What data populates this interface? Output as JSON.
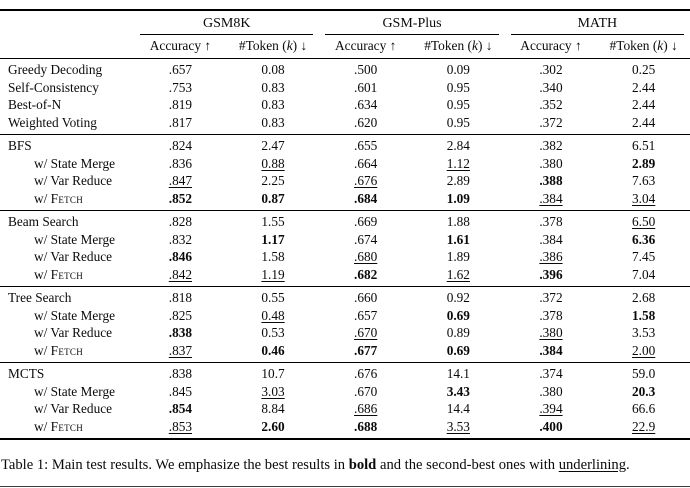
{
  "table": {
    "groups": [
      {
        "label": "GSM8K"
      },
      {
        "label": "GSM-Plus"
      },
      {
        "label": "MATH"
      }
    ],
    "subheader": {
      "accuracy": "Accuracy ↑",
      "token_pre": "#Token (",
      "token_italic": "k",
      "token_post": ") ↓"
    },
    "blocks": [
      {
        "rows": [
          {
            "text": "Greedy Decoding",
            "sc": "",
            "indent": false,
            "cells": [
              [
                ".657",
                ""
              ],
              [
                "0.08",
                ""
              ],
              [
                ".500",
                ""
              ],
              [
                "0.09",
                ""
              ],
              [
                ".302",
                ""
              ],
              [
                "0.25",
                ""
              ]
            ]
          },
          {
            "text": "Self-Consistency",
            "sc": "",
            "indent": false,
            "cells": [
              [
                ".753",
                ""
              ],
              [
                "0.83",
                ""
              ],
              [
                ".601",
                ""
              ],
              [
                "0.95",
                ""
              ],
              [
                ".340",
                ""
              ],
              [
                "2.44",
                ""
              ]
            ]
          },
          {
            "text": "Best-of-N",
            "sc": "",
            "indent": false,
            "cells": [
              [
                ".819",
                ""
              ],
              [
                "0.83",
                ""
              ],
              [
                ".634",
                ""
              ],
              [
                "0.95",
                ""
              ],
              [
                ".352",
                ""
              ],
              [
                "2.44",
                ""
              ]
            ]
          },
          {
            "text": "Weighted Voting",
            "sc": "",
            "indent": false,
            "cells": [
              [
                ".817",
                ""
              ],
              [
                "0.83",
                ""
              ],
              [
                ".620",
                ""
              ],
              [
                "0.95",
                ""
              ],
              [
                ".372",
                ""
              ],
              [
                "2.44",
                ""
              ]
            ]
          }
        ]
      },
      {
        "rows": [
          {
            "text": "BFS",
            "sc": "",
            "indent": false,
            "cells": [
              [
                ".824",
                ""
              ],
              [
                "2.47",
                ""
              ],
              [
                ".655",
                ""
              ],
              [
                "2.84",
                ""
              ],
              [
                ".382",
                ""
              ],
              [
                "6.51",
                ""
              ]
            ]
          },
          {
            "text": "w/ State Merge",
            "sc": "",
            "indent": true,
            "cells": [
              [
                ".836",
                ""
              ],
              [
                "0.88",
                "u"
              ],
              [
                ".664",
                ""
              ],
              [
                "1.12",
                "u"
              ],
              [
                ".380",
                ""
              ],
              [
                "2.89",
                "b"
              ]
            ]
          },
          {
            "text": "w/ Var Reduce",
            "sc": "",
            "indent": true,
            "cells": [
              [
                ".847",
                "u"
              ],
              [
                "2.25",
                ""
              ],
              [
                ".676",
                "u"
              ],
              [
                "2.89",
                ""
              ],
              [
                ".388",
                "b"
              ],
              [
                "7.63",
                ""
              ]
            ]
          },
          {
            "text": "w/ ",
            "sc": "Fetch",
            "indent": true,
            "cells": [
              [
                ".852",
                "b"
              ],
              [
                "0.87",
                "b"
              ],
              [
                ".684",
                "b"
              ],
              [
                "1.09",
                "b"
              ],
              [
                ".384",
                "u"
              ],
              [
                "3.04",
                "u"
              ]
            ]
          }
        ]
      },
      {
        "rows": [
          {
            "text": "Beam Search",
            "sc": "",
            "indent": false,
            "cells": [
              [
                ".828",
                ""
              ],
              [
                "1.55",
                ""
              ],
              [
                ".669",
                ""
              ],
              [
                "1.88",
                ""
              ],
              [
                ".378",
                ""
              ],
              [
                "6.50",
                "u"
              ]
            ]
          },
          {
            "text": "w/ State Merge",
            "sc": "",
            "indent": true,
            "cells": [
              [
                ".832",
                ""
              ],
              [
                "1.17",
                "b"
              ],
              [
                ".674",
                ""
              ],
              [
                "1.61",
                "b"
              ],
              [
                ".384",
                ""
              ],
              [
                "6.36",
                "b"
              ]
            ]
          },
          {
            "text": "w/ Var Reduce",
            "sc": "",
            "indent": true,
            "cells": [
              [
                ".846",
                "b"
              ],
              [
                "1.58",
                ""
              ],
              [
                ".680",
                "u"
              ],
              [
                "1.89",
                ""
              ],
              [
                ".386",
                "u"
              ],
              [
                "7.45",
                ""
              ]
            ]
          },
          {
            "text": "w/ ",
            "sc": "Fetch",
            "indent": true,
            "cells": [
              [
                ".842",
                "u"
              ],
              [
                "1.19",
                "u"
              ],
              [
                ".682",
                "b"
              ],
              [
                "1.62",
                "u"
              ],
              [
                ".396",
                "b"
              ],
              [
                "7.04",
                ""
              ]
            ]
          }
        ]
      },
      {
        "rows": [
          {
            "text": "Tree Search",
            "sc": "",
            "indent": false,
            "cells": [
              [
                ".818",
                ""
              ],
              [
                "0.55",
                ""
              ],
              [
                ".660",
                ""
              ],
              [
                "0.92",
                ""
              ],
              [
                ".372",
                ""
              ],
              [
                "2.68",
                ""
              ]
            ]
          },
          {
            "text": "w/ State Merge",
            "sc": "",
            "indent": true,
            "cells": [
              [
                ".825",
                ""
              ],
              [
                "0.48",
                "u"
              ],
              [
                ".657",
                ""
              ],
              [
                "0.69",
                "b"
              ],
              [
                ".378",
                ""
              ],
              [
                "1.58",
                "b"
              ]
            ]
          },
          {
            "text": "w/ Var Reduce",
            "sc": "",
            "indent": true,
            "cells": [
              [
                ".838",
                "b"
              ],
              [
                "0.53",
                ""
              ],
              [
                ".670",
                "u"
              ],
              [
                "0.89",
                ""
              ],
              [
                ".380",
                "u"
              ],
              [
                "3.53",
                ""
              ]
            ]
          },
          {
            "text": "w/ ",
            "sc": "Fetch",
            "indent": true,
            "cells": [
              [
                ".837",
                "u"
              ],
              [
                "0.46",
                "b"
              ],
              [
                ".677",
                "b"
              ],
              [
                "0.69",
                "b"
              ],
              [
                ".384",
                "b"
              ],
              [
                "2.00",
                "u"
              ]
            ]
          }
        ]
      },
      {
        "rows": [
          {
            "text": "MCTS",
            "sc": "",
            "indent": false,
            "cells": [
              [
                ".838",
                ""
              ],
              [
                "10.7",
                ""
              ],
              [
                ".676",
                ""
              ],
              [
                "14.1",
                ""
              ],
              [
                ".374",
                ""
              ],
              [
                "59.0",
                ""
              ]
            ]
          },
          {
            "text": "w/ State Merge",
            "sc": "",
            "indent": true,
            "cells": [
              [
                ".845",
                ""
              ],
              [
                "3.03",
                "u"
              ],
              [
                ".670",
                ""
              ],
              [
                "3.43",
                "b"
              ],
              [
                ".380",
                ""
              ],
              [
                "20.3",
                "b"
              ]
            ]
          },
          {
            "text": "w/ Var Reduce",
            "sc": "",
            "indent": true,
            "cells": [
              [
                ".854",
                "b"
              ],
              [
                "8.84",
                ""
              ],
              [
                ".686",
                "u"
              ],
              [
                "14.4",
                ""
              ],
              [
                ".394",
                "u"
              ],
              [
                "66.6",
                ""
              ]
            ]
          },
          {
            "text": "w/ ",
            "sc": "Fetch",
            "indent": true,
            "cells": [
              [
                ".853",
                "u"
              ],
              [
                "2.60",
                "b"
              ],
              [
                ".688",
                "b"
              ],
              [
                "3.53",
                "u"
              ],
              [
                ".400",
                "b"
              ],
              [
                "22.9",
                "u"
              ]
            ]
          }
        ]
      }
    ]
  },
  "caption": {
    "prefix": "Table 1: Main test results. We emphasize the best results in ",
    "bold_word": "bold",
    "middle": " and the second-best ones with ",
    "underline_word": "underlining",
    "suffix": "."
  }
}
